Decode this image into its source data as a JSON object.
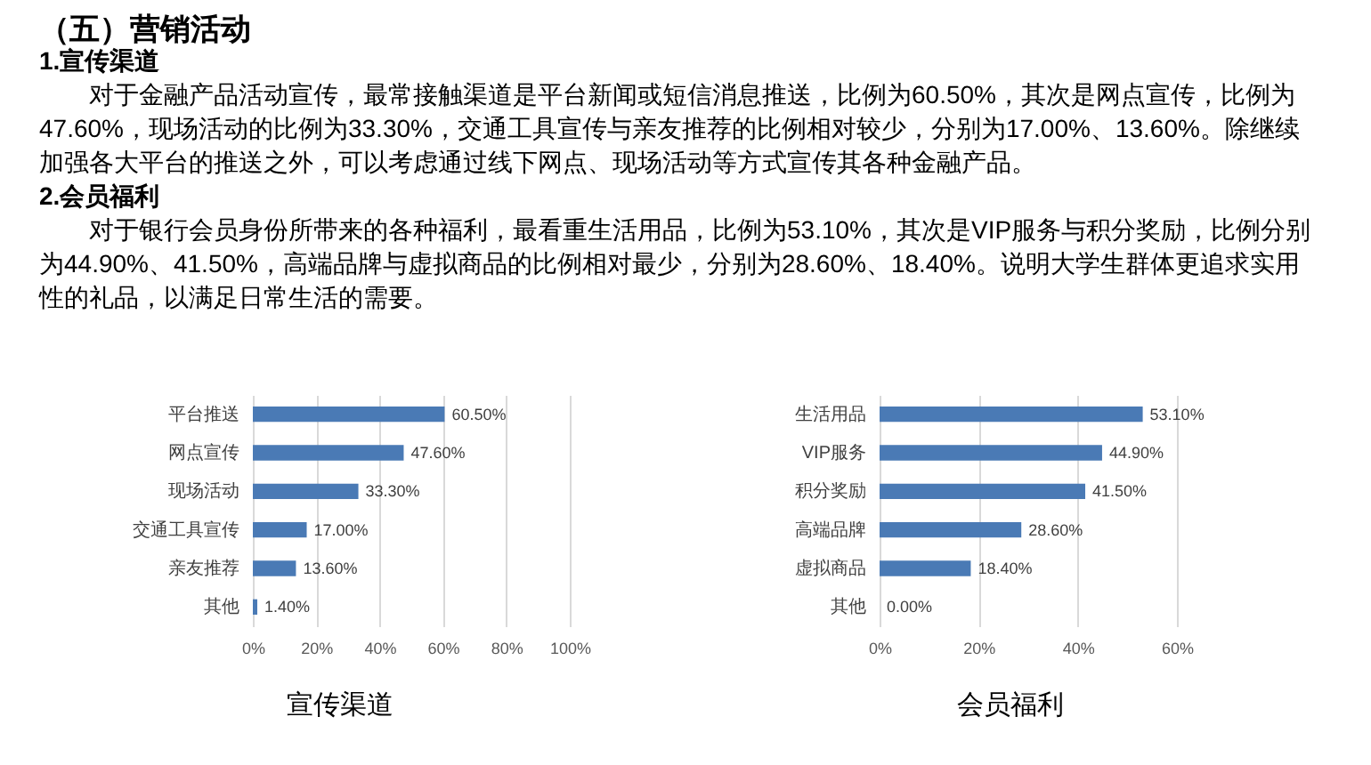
{
  "chart_data": [
    {
      "type": "other",
      "title": "（五）营销活动",
      "annotations": [
        "1.宣传渠道",
        "对于金融产品活动宣传，最常接触渠道是平台新闻或短信消息推送，比例为60.50%，其次是网点宣传，比例为47.60%，现场活动的比例为33.30%，交通工具宣传与亲友推荐的比例相对较少，分别为17.00%、13.60%。除继续加强各大平台的推送之外，可以考虑通过线下网点、现场活动等方式宣传其各种金融产品。",
        "2.会员福利",
        "对于银行会员身份所带来的各种福利，最看重生活用品，比例为53.10%，其次是VIP服务与积分奖励，比例分别为44.90%、41.50%，高端品牌与虚拟商品的比例相对最少，分别为28.60%、18.40%。说明大学生群体更追求实用性的礼品，以满足日常生活的需要。"
      ]
    },
    {
      "type": "bar",
      "orientation": "horizontal",
      "title": "宣传渠道",
      "categories": [
        "平台推送",
        "网点宣传",
        "现场活动",
        "交通工具宣传",
        "亲友推荐",
        "其他"
      ],
      "values": [
        60.5,
        47.6,
        33.3,
        17.0,
        13.6,
        1.4
      ],
      "value_labels": [
        "60.50%",
        "47.60%",
        "33.30%",
        "17.00%",
        "13.60%",
        "1.40%"
      ],
      "color": "#4a7ab5",
      "xlim": [
        0,
        100
      ],
      "xticks": [
        {
          "value": 0,
          "label": "0%"
        },
        {
          "value": 20,
          "label": "20%"
        },
        {
          "value": 40,
          "label": "40%"
        },
        {
          "value": 60,
          "label": "60%"
        },
        {
          "value": 80,
          "label": "80%"
        },
        {
          "value": 100,
          "label": "100%"
        }
      ],
      "grid": "x"
    },
    {
      "type": "bar",
      "orientation": "horizontal",
      "title": "会员福利",
      "categories": [
        "生活用品",
        "VIP服务",
        "积分奖励",
        "高端品牌",
        "虚拟商品",
        "其他"
      ],
      "values": [
        53.1,
        44.9,
        41.5,
        28.6,
        18.4,
        0.0
      ],
      "value_labels": [
        "53.10%",
        "44.90%",
        "41.50%",
        "28.60%",
        "18.40%",
        "0.00%"
      ],
      "color": "#4a7ab5",
      "xlim": [
        0,
        60
      ],
      "xticks": [
        {
          "value": 0,
          "label": "0%"
        },
        {
          "value": 20,
          "label": "20%"
        },
        {
          "value": 40,
          "label": "40%"
        },
        {
          "value": 60,
          "label": "60%"
        }
      ],
      "grid": "x"
    }
  ]
}
